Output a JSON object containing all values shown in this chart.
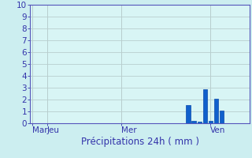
{
  "ylim": [
    0,
    10
  ],
  "background_color": "#cceef0",
  "plot_bg_color": "#d8f5f5",
  "grid_color": "#b8cece",
  "bar_color": "#1060cc",
  "bar_edge_color": "#0848aa",
  "x_tick_labels": [
    "Mar",
    "Jeu",
    "Mer",
    "Ven"
  ],
  "x_tick_positions": [
    0,
    8,
    48,
    96
  ],
  "xlim": [
    -1,
    117
  ],
  "bars": [
    {
      "x": 84,
      "height": 1.55
    },
    {
      "x": 87,
      "height": 0.18
    },
    {
      "x": 90,
      "height": 0.12
    },
    {
      "x": 93,
      "height": 2.85
    },
    {
      "x": 96,
      "height": 0.18
    },
    {
      "x": 99,
      "height": 2.05
    },
    {
      "x": 102,
      "height": 1.05
    }
  ],
  "bar_width": 2.2,
  "xlabel": "Précipitations 24h ( mm )",
  "axis_color": "#5555bb",
  "tick_color": "#3333aa",
  "label_fontsize": 8.5,
  "tick_fontsize": 7.5,
  "ytick_positions": [
    0,
    1,
    2,
    3,
    4,
    5,
    6,
    7,
    8,
    9,
    10
  ]
}
